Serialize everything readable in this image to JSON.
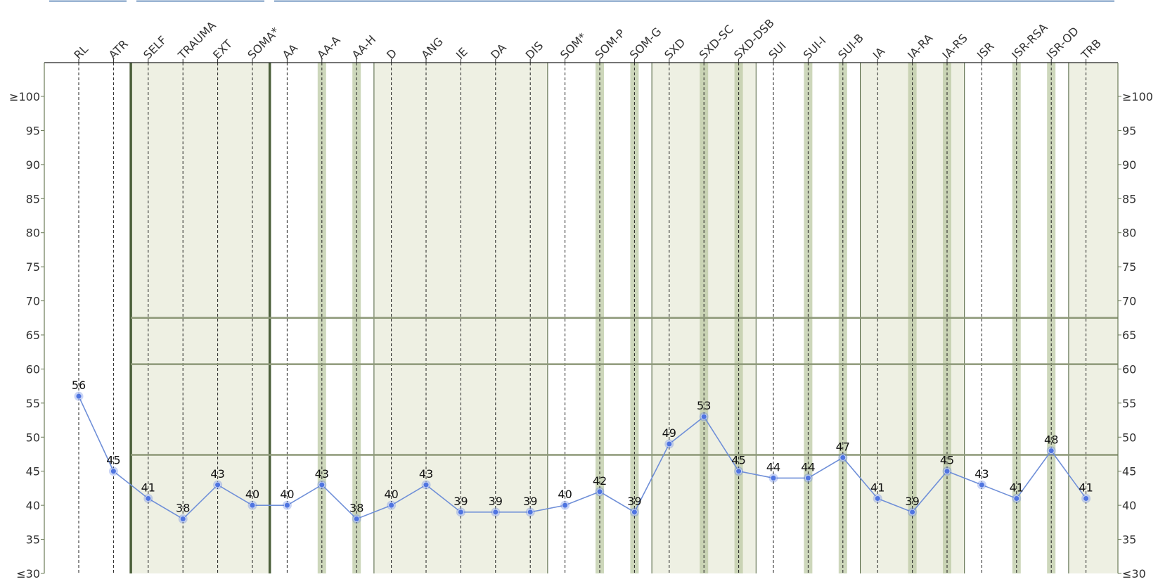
{
  "chart_data": {
    "type": "line",
    "categories": [
      "RL",
      "ATR",
      "SELF",
      "TRAUMA",
      "EXT",
      "SOMA*",
      "AA",
      "AA-A",
      "AA-H",
      "D",
      "ANG",
      "IE",
      "DA",
      "DIS",
      "SOM*",
      "SOM-P",
      "SOM-G",
      "SXD",
      "SXD-SC",
      "SXD-DSB",
      "SUI",
      "SUI-I",
      "SUI-B",
      "IA",
      "IA-RA",
      "IA-RS",
      "ISR",
      "ISR-RSA",
      "ISR-OD",
      "TRB"
    ],
    "values": [
      56,
      45,
      41,
      38,
      43,
      40,
      40,
      43,
      38,
      40,
      43,
      39,
      39,
      39,
      40,
      42,
      39,
      49,
      53,
      45,
      44,
      44,
      47,
      41,
      39,
      45,
      43,
      41,
      48,
      41
    ],
    "ylim": [
      30,
      100
    ],
    "yticks": [
      30,
      35,
      40,
      45,
      50,
      55,
      60,
      65,
      70,
      75,
      80,
      85,
      90,
      95,
      100
    ],
    "ytick_labels": [
      "≤30",
      "35",
      "40",
      "45",
      "50",
      "55",
      "60",
      "65",
      "70",
      "75",
      "80",
      "85",
      "90",
      "95",
      "≥100"
    ],
    "shaded_groups": [
      [
        2,
        5
      ],
      [
        9,
        13
      ],
      [
        17,
        19
      ],
      [
        23,
        25
      ],
      [
        29,
        29
      ]
    ],
    "subscale_highlights": [
      7,
      8,
      15,
      16,
      18,
      19,
      21,
      22,
      24,
      25,
      27,
      28
    ],
    "reference_lines": [
      {
        "y": 67.5,
        "from": 2,
        "to": 29
      },
      {
        "y": 60.7,
        "from": 2,
        "to": 29
      },
      {
        "y": 47.4,
        "from": 2,
        "to": 29
      }
    ],
    "grid": true,
    "legend": "none",
    "colors": {
      "line": "#6f8fd8",
      "marker": "#4f74e0",
      "shade": "#eef0e3",
      "highlight": "#bccaa4",
      "divider": "#4b5f3a",
      "axis": "#6b7b58",
      "header_rule": "#3b6ea8"
    }
  }
}
